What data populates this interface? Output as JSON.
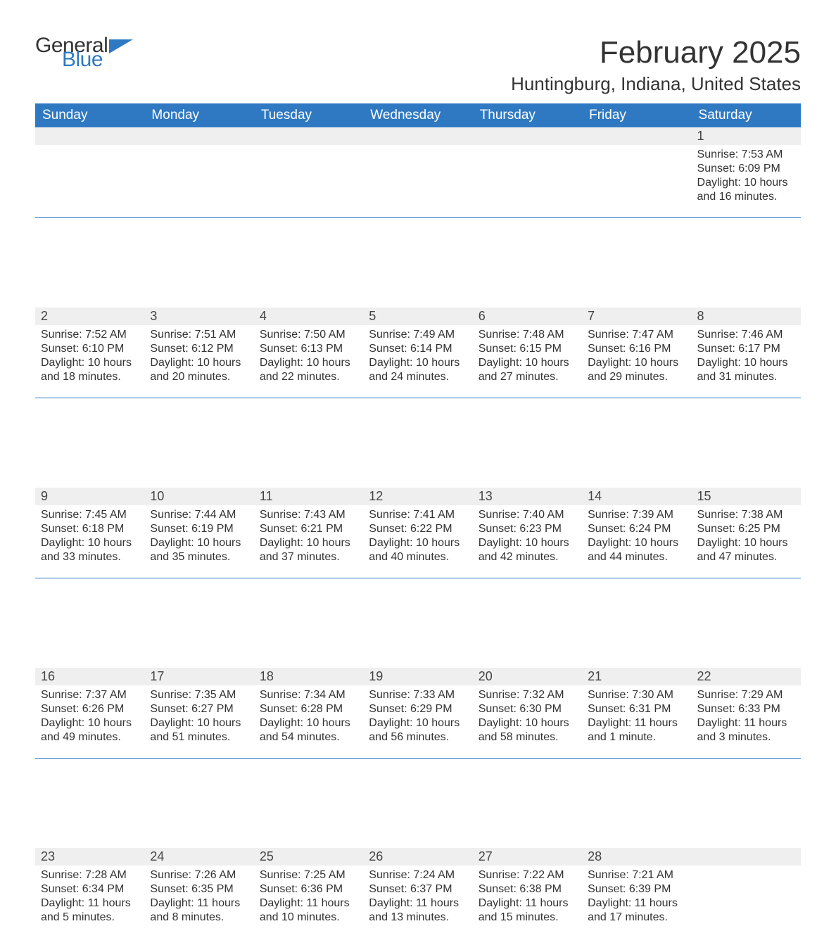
{
  "logo": {
    "part1": "General",
    "part2": "Blue",
    "text_color": "#333333",
    "accent_color": "#2f79c2"
  },
  "title": "February 2025",
  "location": "Huntingburg, Indiana, United States",
  "colors": {
    "header_bg": "#2f79c2",
    "header_fg": "#ffffff",
    "daynum_bg": "#efefef",
    "rule": "#2f79c2",
    "text": "#333333",
    "page_bg": "#ffffff"
  },
  "weekdays": [
    "Sunday",
    "Monday",
    "Tuesday",
    "Wednesday",
    "Thursday",
    "Friday",
    "Saturday"
  ],
  "weeks": [
    [
      null,
      null,
      null,
      null,
      null,
      null,
      {
        "n": "1",
        "sunrise": "Sunrise: 7:53 AM",
        "sunset": "Sunset: 6:09 PM",
        "daylight": "Daylight: 10 hours and 16 minutes."
      }
    ],
    [
      {
        "n": "2",
        "sunrise": "Sunrise: 7:52 AM",
        "sunset": "Sunset: 6:10 PM",
        "daylight": "Daylight: 10 hours and 18 minutes."
      },
      {
        "n": "3",
        "sunrise": "Sunrise: 7:51 AM",
        "sunset": "Sunset: 6:12 PM",
        "daylight": "Daylight: 10 hours and 20 minutes."
      },
      {
        "n": "4",
        "sunrise": "Sunrise: 7:50 AM",
        "sunset": "Sunset: 6:13 PM",
        "daylight": "Daylight: 10 hours and 22 minutes."
      },
      {
        "n": "5",
        "sunrise": "Sunrise: 7:49 AM",
        "sunset": "Sunset: 6:14 PM",
        "daylight": "Daylight: 10 hours and 24 minutes."
      },
      {
        "n": "6",
        "sunrise": "Sunrise: 7:48 AM",
        "sunset": "Sunset: 6:15 PM",
        "daylight": "Daylight: 10 hours and 27 minutes."
      },
      {
        "n": "7",
        "sunrise": "Sunrise: 7:47 AM",
        "sunset": "Sunset: 6:16 PM",
        "daylight": "Daylight: 10 hours and 29 minutes."
      },
      {
        "n": "8",
        "sunrise": "Sunrise: 7:46 AM",
        "sunset": "Sunset: 6:17 PM",
        "daylight": "Daylight: 10 hours and 31 minutes."
      }
    ],
    [
      {
        "n": "9",
        "sunrise": "Sunrise: 7:45 AM",
        "sunset": "Sunset: 6:18 PM",
        "daylight": "Daylight: 10 hours and 33 minutes."
      },
      {
        "n": "10",
        "sunrise": "Sunrise: 7:44 AM",
        "sunset": "Sunset: 6:19 PM",
        "daylight": "Daylight: 10 hours and 35 minutes."
      },
      {
        "n": "11",
        "sunrise": "Sunrise: 7:43 AM",
        "sunset": "Sunset: 6:21 PM",
        "daylight": "Daylight: 10 hours and 37 minutes."
      },
      {
        "n": "12",
        "sunrise": "Sunrise: 7:41 AM",
        "sunset": "Sunset: 6:22 PM",
        "daylight": "Daylight: 10 hours and 40 minutes."
      },
      {
        "n": "13",
        "sunrise": "Sunrise: 7:40 AM",
        "sunset": "Sunset: 6:23 PM",
        "daylight": "Daylight: 10 hours and 42 minutes."
      },
      {
        "n": "14",
        "sunrise": "Sunrise: 7:39 AM",
        "sunset": "Sunset: 6:24 PM",
        "daylight": "Daylight: 10 hours and 44 minutes."
      },
      {
        "n": "15",
        "sunrise": "Sunrise: 7:38 AM",
        "sunset": "Sunset: 6:25 PM",
        "daylight": "Daylight: 10 hours and 47 minutes."
      }
    ],
    [
      {
        "n": "16",
        "sunrise": "Sunrise: 7:37 AM",
        "sunset": "Sunset: 6:26 PM",
        "daylight": "Daylight: 10 hours and 49 minutes."
      },
      {
        "n": "17",
        "sunrise": "Sunrise: 7:35 AM",
        "sunset": "Sunset: 6:27 PM",
        "daylight": "Daylight: 10 hours and 51 minutes."
      },
      {
        "n": "18",
        "sunrise": "Sunrise: 7:34 AM",
        "sunset": "Sunset: 6:28 PM",
        "daylight": "Daylight: 10 hours and 54 minutes."
      },
      {
        "n": "19",
        "sunrise": "Sunrise: 7:33 AM",
        "sunset": "Sunset: 6:29 PM",
        "daylight": "Daylight: 10 hours and 56 minutes."
      },
      {
        "n": "20",
        "sunrise": "Sunrise: 7:32 AM",
        "sunset": "Sunset: 6:30 PM",
        "daylight": "Daylight: 10 hours and 58 minutes."
      },
      {
        "n": "21",
        "sunrise": "Sunrise: 7:30 AM",
        "sunset": "Sunset: 6:31 PM",
        "daylight": "Daylight: 11 hours and 1 minute."
      },
      {
        "n": "22",
        "sunrise": "Sunrise: 7:29 AM",
        "sunset": "Sunset: 6:33 PM",
        "daylight": "Daylight: 11 hours and 3 minutes."
      }
    ],
    [
      {
        "n": "23",
        "sunrise": "Sunrise: 7:28 AM",
        "sunset": "Sunset: 6:34 PM",
        "daylight": "Daylight: 11 hours and 5 minutes."
      },
      {
        "n": "24",
        "sunrise": "Sunrise: 7:26 AM",
        "sunset": "Sunset: 6:35 PM",
        "daylight": "Daylight: 11 hours and 8 minutes."
      },
      {
        "n": "25",
        "sunrise": "Sunrise: 7:25 AM",
        "sunset": "Sunset: 6:36 PM",
        "daylight": "Daylight: 11 hours and 10 minutes."
      },
      {
        "n": "26",
        "sunrise": "Sunrise: 7:24 AM",
        "sunset": "Sunset: 6:37 PM",
        "daylight": "Daylight: 11 hours and 13 minutes."
      },
      {
        "n": "27",
        "sunrise": "Sunrise: 7:22 AM",
        "sunset": "Sunset: 6:38 PM",
        "daylight": "Daylight: 11 hours and 15 minutes."
      },
      {
        "n": "28",
        "sunrise": "Sunrise: 7:21 AM",
        "sunset": "Sunset: 6:39 PM",
        "daylight": "Daylight: 11 hours and 17 minutes."
      },
      null
    ]
  ]
}
